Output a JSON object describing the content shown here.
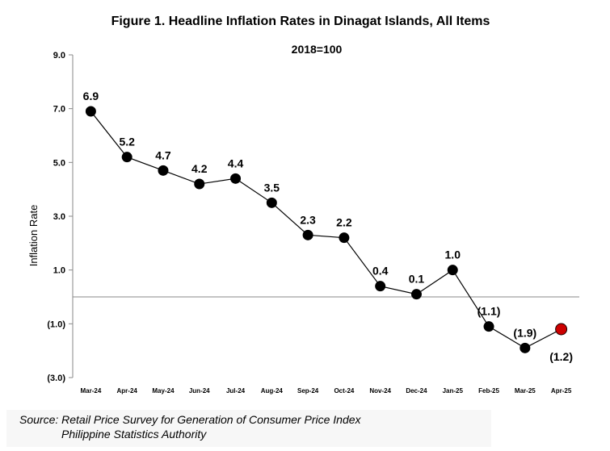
{
  "chart_data": {
    "type": "line",
    "title": "Figure 1. Headline Inflation Rates in Dinagat Islands, All Items",
    "subtitle": "2018=100",
    "ylabel": "Inflation Rate",
    "xlabel": "",
    "ylim": [
      -3.0,
      9.0
    ],
    "yticks": [
      "9.0",
      "7.0",
      "5.0",
      "3.0",
      "1.0",
      "(1.0)",
      "(3.0)"
    ],
    "ytick_values": [
      9,
      7,
      5,
      3,
      1,
      -1,
      -3
    ],
    "categories": [
      "Mar-24",
      "Apr-24",
      "May-24",
      "Jun-24",
      "Jul-24",
      "Aug-24",
      "Sep-24",
      "Oct-24",
      "Nov-24",
      "Dec-24",
      "Jan-25",
      "Feb-25",
      "Mar-25",
      "Apr-25"
    ],
    "series": [
      {
        "values": [
          6.9,
          5.2,
          4.7,
          4.2,
          4.4,
          3.5,
          2.3,
          2.2,
          0.4,
          0.1,
          1.0,
          -1.1,
          -1.9,
          -1.2
        ],
        "labels": [
          "6.9",
          "5.2",
          "4.7",
          "4.2",
          "4.4",
          "3.5",
          "2.3",
          "2.2",
          "0.4",
          "0.1",
          "1.0",
          "(1.1)",
          "(1.9)",
          "(1.2)"
        ],
        "color": "#000000",
        "highlight_color": "#cc0000"
      }
    ],
    "grid": false,
    "legend": "none"
  },
  "source": {
    "line1": "Source: Retail Price Survey for Generation of Consumer Price Index",
    "line2": "Philippine Statistics Authority"
  }
}
